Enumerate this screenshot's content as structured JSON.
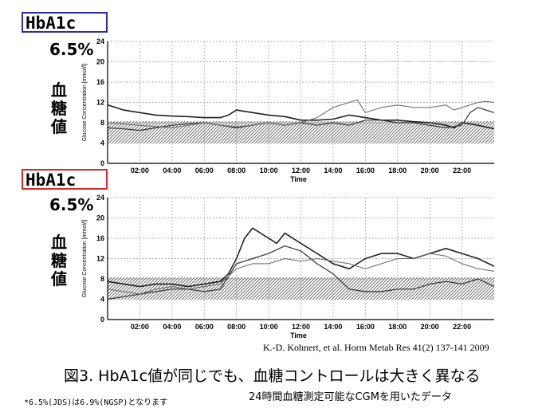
{
  "labels": {
    "hba1c": "HbA1c",
    "percent": "6.5%",
    "blood_sugar_value": [
      "血",
      "糖",
      "値"
    ],
    "axis_title_y": "Glucose Concentration [mmol/l]",
    "axis_title_x": "Time"
  },
  "citation": "K.-D. Kohnert, et al. Horm Metab Res 41(2) 137-141 2009",
  "caption": "図3. HbA1c値が同じでも、血糖コントロールは大きく異なる",
  "subcaption": "24時間血糖測定可能なCGMを用いたデータ",
  "footnote": "*6.5%(JDS)は6.9%(NGSP)となります",
  "colors": {
    "blue_box": "#2b2ea8",
    "red_box": "#d42a2a",
    "target_band_hatch": "#555555"
  },
  "chart_data": [
    {
      "type": "line",
      "ylabel": "Glucose Concentration [mmol/l]",
      "xlabel": "Time",
      "xlim": [
        0,
        24
      ],
      "ylim": [
        0,
        24
      ],
      "yticks": [
        0,
        4,
        8,
        12,
        16,
        20,
        24
      ],
      "xticks": [
        "02:00",
        "04:00",
        "06:00",
        "08:00",
        "10:00",
        "12:00",
        "14:00",
        "16:00",
        "18:00",
        "20:00",
        "22:00"
      ],
      "grid": true,
      "target_band": [
        3.9,
        8.3
      ],
      "series": [
        {
          "x": [
            0,
            1,
            2,
            3,
            4,
            5,
            6,
            7,
            7.5,
            8,
            9,
            10,
            11,
            12,
            13,
            14,
            15,
            16,
            17,
            18,
            19,
            20,
            21,
            21.5,
            22,
            23,
            24
          ],
          "y": [
            11.5,
            10.5,
            10,
            9.5,
            9.3,
            9.2,
            9,
            9,
            9.5,
            10.5,
            10,
            9.5,
            9.2,
            8.5,
            8.5,
            8.7,
            9.5,
            9,
            8.5,
            8.5,
            8.2,
            8,
            7.5,
            7,
            8,
            7.5,
            6.8
          ]
        },
        {
          "x": [
            0,
            1,
            2,
            3,
            4,
            5,
            6,
            7,
            8,
            9,
            10,
            11,
            12,
            13,
            14,
            15,
            16,
            17,
            18,
            19,
            20,
            21,
            22,
            22.5,
            23,
            24
          ],
          "y": [
            7,
            6.8,
            6.5,
            7,
            7.5,
            7.8,
            8,
            7.5,
            7,
            7.5,
            8,
            7.5,
            8,
            7.5,
            8,
            7.5,
            8.5,
            8.5,
            8,
            8,
            7.5,
            7,
            7.5,
            10,
            11,
            10
          ]
        },
        {
          "x": [
            0,
            2,
            4,
            5,
            6,
            7,
            8,
            9,
            10,
            11,
            12,
            13,
            14,
            15,
            15.5,
            16,
            17,
            18,
            19,
            20,
            21,
            21.5,
            22,
            23,
            23.5,
            24
          ],
          "y": [
            8,
            7.5,
            7,
            7.5,
            8,
            7.5,
            7.2,
            7.5,
            8,
            7.5,
            8,
            9,
            11,
            12,
            12.5,
            10,
            11,
            11.5,
            11,
            11,
            11.5,
            10.5,
            11,
            12,
            12.2,
            12
          ]
        }
      ]
    },
    {
      "type": "line",
      "ylabel": "Glucose Concentration [mmol/l]",
      "xlabel": "Time",
      "xlim": [
        0,
        24
      ],
      "ylim": [
        0,
        24
      ],
      "yticks": [
        0,
        4,
        8,
        12,
        16,
        20,
        24
      ],
      "xticks": [
        "02:00",
        "04:00",
        "06:00",
        "08:00",
        "10:00",
        "12:00",
        "14:00",
        "16:00",
        "18:00",
        "20:00",
        "22:00"
      ],
      "grid": true,
      "target_band": [
        3.9,
        8.3
      ],
      "series": [
        {
          "x": [
            0,
            1,
            2,
            3,
            4,
            5,
            6,
            7,
            7.5,
            8,
            8.5,
            9,
            10,
            10.5,
            11,
            12,
            13,
            14,
            15,
            16,
            17,
            18,
            19,
            20,
            21,
            22,
            23,
            24
          ],
          "y": [
            7.5,
            7,
            6.5,
            7,
            7,
            6.5,
            7,
            7.5,
            9,
            12,
            16,
            18,
            16,
            15,
            17,
            15,
            13,
            11,
            10,
            12,
            13,
            13,
            12,
            13,
            14,
            13,
            12,
            10.5
          ]
        },
        {
          "x": [
            0,
            1,
            2,
            3,
            4,
            5,
            6,
            7,
            8,
            9,
            10,
            11,
            12,
            13,
            14,
            15,
            16,
            17,
            18,
            19,
            20,
            21,
            22,
            23,
            24
          ],
          "y": [
            4,
            4.5,
            5,
            5.5,
            6,
            6,
            5.5,
            6,
            11,
            12,
            13,
            14.5,
            13.5,
            11,
            9,
            6,
            5.5,
            5.5,
            6,
            6,
            7,
            7.5,
            7,
            8,
            6.5
          ]
        },
        {
          "x": [
            0,
            1,
            2,
            3,
            4,
            5,
            6,
            7,
            8,
            9,
            10,
            11,
            12,
            13,
            14,
            15,
            16,
            17,
            18,
            19,
            20,
            21,
            22,
            23,
            24
          ],
          "y": [
            6,
            5.5,
            5,
            6,
            6.5,
            6,
            6.5,
            7,
            10,
            11,
            11,
            12,
            11.5,
            12,
            11.5,
            11,
            10,
            11,
            12,
            12,
            13,
            12.5,
            11,
            10,
            9.5
          ]
        }
      ]
    }
  ]
}
